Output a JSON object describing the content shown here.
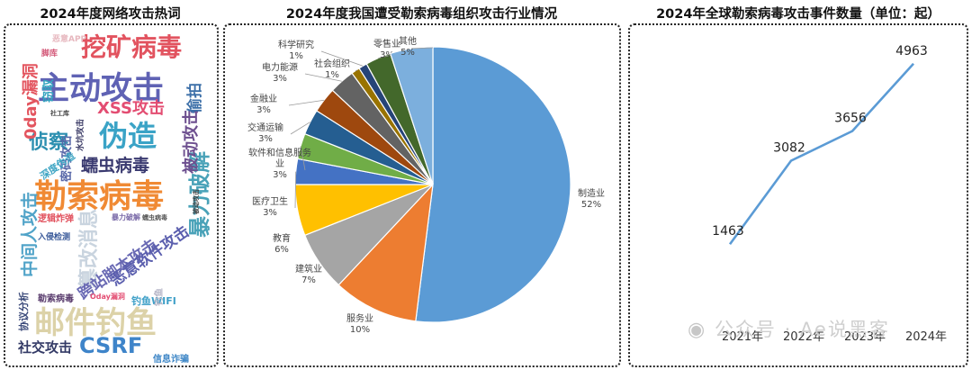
{
  "chart_data": [
    {
      "type": "wordcloud",
      "title": "2024年度网络攻击热词",
      "words": [
        {
          "text": "挖矿病毒",
          "color": "#e2535f"
        },
        {
          "text": "主动攻击",
          "color": "#5f62b4"
        },
        {
          "text": "勒索病毒",
          "color": "#f08a34"
        },
        {
          "text": "伪造",
          "color": "#3aa3c6"
        },
        {
          "text": "邮件钓鱼",
          "color": "#dcd2a8"
        },
        {
          "text": "暴力破解",
          "color": "#49a2b8"
        },
        {
          "text": "CSRF",
          "color": "#3e84c9"
        },
        {
          "text": "XSS攻击",
          "color": "#e34d72"
        },
        {
          "text": "侦察",
          "color": "#2b8fb0"
        },
        {
          "text": "蠕虫病毒",
          "color": "#3a3a70"
        },
        {
          "text": "被动攻击",
          "color": "#6d4f8f"
        },
        {
          "text": "篡改消息",
          "color": "#c9d4df"
        },
        {
          "text": "跨站脚本攻击",
          "color": "#6a6ab4"
        },
        {
          "text": "恶意软件攻击",
          "color": "#5b5fae"
        },
        {
          "text": "中间人攻击",
          "color": "#50a3c8"
        },
        {
          "text": "社交攻击",
          "color": "#333a66"
        },
        {
          "text": "0day漏洞",
          "color": "#e3555f"
        },
        {
          "text": "窃取",
          "color": "#33a4bf"
        },
        {
          "text": "密码攻击",
          "color": "#5867a8"
        },
        {
          "text": "偷拍",
          "color": "#3c6fa8"
        },
        {
          "text": "逻辑炸弹",
          "color": "#e2535f"
        },
        {
          "text": "钓鱼WIFI",
          "color": "#3fa0c8"
        },
        {
          "text": "协议分析",
          "color": "#3b4a7a"
        },
        {
          "text": "勒索病毒",
          "color": "#5a3d6e"
        },
        {
          "text": "信息诈骗",
          "color": "#3d86c6"
        },
        {
          "text": "深度伪造",
          "color": "#3ea5c3"
        },
        {
          "text": "钓鱼",
          "color": "#b7b7c8"
        },
        {
          "text": "恶意APP",
          "color": "#e7b8bf"
        },
        {
          "text": "水坑攻击",
          "color": "#3b3b66"
        },
        {
          "text": "社工库",
          "color": "#444"
        },
        {
          "text": "脚库",
          "color": "#d45a7a"
        },
        {
          "text": "暴力破解",
          "color": "#7a6aa8"
        },
        {
          "text": "蠕虫病毒",
          "color": "#555"
        },
        {
          "text": "入侵检测",
          "color": "#3a5a9a"
        },
        {
          "text": "Oday漏洞",
          "color": "#e34d72"
        },
        {
          "text": "被动攻击",
          "color": "#444"
        }
      ]
    },
    {
      "type": "pie",
      "title": "2024年度我国遭受勒索病毒组织攻击行业情况",
      "slices": [
        {
          "name": "制造业",
          "value": 52,
          "label": "52%",
          "color": "#5b9bd5"
        },
        {
          "name": "服务业",
          "value": 10,
          "label": "10%",
          "color": "#ed7d31"
        },
        {
          "name": "建筑业",
          "value": 7,
          "label": "7%",
          "color": "#a5a5a5"
        },
        {
          "name": "教育",
          "value": 6,
          "label": "6%",
          "color": "#ffc000"
        },
        {
          "name": "医疗卫生",
          "value": 3,
          "label": "3%",
          "color": "#4472c4"
        },
        {
          "name": "软件和信息服务业",
          "value": 3,
          "label": "3%",
          "color": "#70ad47"
        },
        {
          "name": "交通运输",
          "value": 3,
          "label": "3%",
          "color": "#255e91"
        },
        {
          "name": "金融业",
          "value": 3,
          "label": "3%",
          "color": "#9e480e"
        },
        {
          "name": "电力能源",
          "value": 3,
          "label": "3%",
          "color": "#636363"
        },
        {
          "name": "社会组织",
          "value": 1,
          "label": "1%",
          "color": "#997300"
        },
        {
          "name": "科学研究",
          "value": 1,
          "label": "1%",
          "color": "#264478"
        },
        {
          "name": "零售业",
          "value": 3,
          "label": "3%",
          "color": "#43682b"
        },
        {
          "name": "其他",
          "value": 5,
          "label": "5%",
          "color": "#7cafdd"
        }
      ]
    },
    {
      "type": "line",
      "title": "2024年全球勒索病毒攻击事件数量（单位：起）",
      "categories": [
        "2021年",
        "2022年",
        "2023年",
        "2024年"
      ],
      "values": [
        1463,
        3082,
        3656,
        4963
      ],
      "ylim": [
        0,
        5500
      ],
      "line_color": "#5b9bd5",
      "grid": false
    }
  ],
  "watermark": "公众号 · Ae说黑客"
}
